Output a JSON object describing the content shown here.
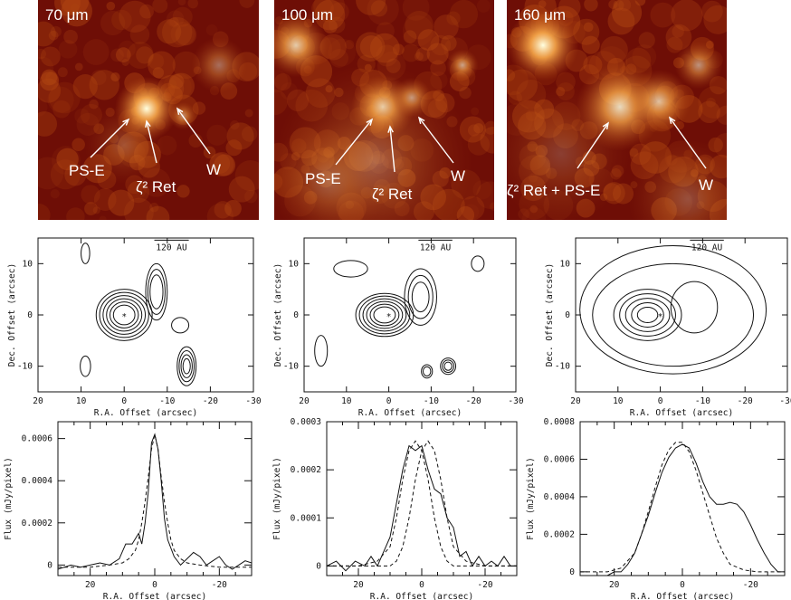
{
  "images": [
    {
      "wavelength": "70 μm",
      "labels": [
        {
          "key": "pse",
          "text": "PS-E"
        },
        {
          "key": "ret",
          "text": "ζ² Ret"
        },
        {
          "key": "w",
          "text": "W"
        }
      ]
    },
    {
      "wavelength": "100 μm",
      "labels": [
        {
          "key": "pse",
          "text": "PS-E"
        },
        {
          "key": "ret",
          "text": "ζ² Ret"
        },
        {
          "key": "w",
          "text": "W"
        }
      ]
    },
    {
      "wavelength": "160 μm",
      "labels": [
        {
          "key": "retpse",
          "text": "ζ² Ret + PS-E"
        },
        {
          "key": "w",
          "text": "W"
        }
      ]
    }
  ],
  "colors": {
    "image_dark": "#6e0e06",
    "image_mid": "#b34812",
    "image_bright": "#f7a84a",
    "image_peak": "#ffffe0",
    "line": "#111111"
  },
  "chart_data": [
    {
      "type": "contour",
      "panel": "70 μm",
      "xlabel": "R.A. Offset (arcsec)",
      "ylabel": "Dec. Offset (arcsec)",
      "xlim": [
        20,
        -30
      ],
      "ylim": [
        -15,
        15
      ],
      "xticks": [
        20,
        10,
        0,
        -10,
        -20,
        -30
      ],
      "yticks": [
        -10,
        0,
        10
      ],
      "scalebar": "120 AU",
      "star": [
        0,
        0
      ]
    },
    {
      "type": "contour",
      "panel": "100 μm",
      "xlabel": "R.A. Offset (arcsec)",
      "ylabel": "Dec. Offset (arcsec)",
      "xlim": [
        20,
        -30
      ],
      "ylim": [
        -15,
        15
      ],
      "xticks": [
        20,
        10,
        0,
        -10,
        -20,
        -30
      ],
      "yticks": [
        -10,
        0,
        10
      ],
      "scalebar": "120 AU",
      "star": [
        0,
        0
      ]
    },
    {
      "type": "contour",
      "panel": "160 μm",
      "xlabel": "R.A. Offset (arcsec)",
      "ylabel": "Dec. Offset (arcsec)",
      "xlim": [
        20,
        -30
      ],
      "ylim": [
        -15,
        15
      ],
      "xticks": [
        20,
        10,
        0,
        -10,
        -20,
        -30
      ],
      "yticks": [
        -10,
        0,
        10
      ],
      "scalebar": "120 AU",
      "star": [
        0,
        0
      ]
    },
    {
      "type": "line",
      "panel": "70 μm",
      "xlabel": "R.A. Offset (arcsec)",
      "ylabel": "Flux (mJy/pixel)",
      "xlim": [
        30,
        -30
      ],
      "ylim": [
        -5e-05,
        0.00068
      ],
      "xticks": [
        20,
        0,
        -20
      ],
      "yticks": [
        0,
        0.0002,
        0.0004,
        0.0006
      ],
      "ytick_labels": [
        "0",
        "0.0002",
        "0.0004",
        "0.0006"
      ],
      "series": [
        {
          "style": "solid",
          "x": [
            30,
            26,
            23,
            20,
            17,
            14,
            11,
            9,
            7,
            5,
            4,
            3,
            2,
            1,
            0,
            -1,
            -2,
            -3,
            -4,
            -6,
            -8,
            -10,
            -12,
            -14,
            -16,
            -18,
            -20,
            -22,
            -24,
            -26,
            -28,
            -30
          ],
          "y": [
            -2e-05,
            0.0,
            -1e-05,
            0.0,
            1e-05,
            0.0,
            3e-05,
            0.0001,
            0.0001,
            0.00015,
            0.0001,
            0.0002,
            0.00035,
            0.00058,
            0.00062,
            0.00055,
            0.0004,
            0.00022,
            0.00012,
            4e-05,
            0.0,
            3e-05,
            6e-05,
            4e-05,
            0.0,
            2e-05,
            4e-05,
            0.0,
            -2e-05,
            0.0,
            2e-05,
            1e-05
          ]
        },
        {
          "style": "dashed",
          "x": [
            30,
            20,
            14,
            10,
            8,
            6,
            5,
            4,
            3,
            2,
            1,
            0,
            -1,
            -2,
            -3,
            -4,
            -5,
            -6,
            -8,
            -10,
            -14,
            -20,
            -30
          ],
          "y": [
            -1e-05,
            -1e-05,
            0.0,
            1e-05,
            3e-05,
            7e-05,
            0.00012,
            0.0002,
            0.0003,
            0.00042,
            0.00055,
            0.00062,
            0.00055,
            0.00042,
            0.0003,
            0.0002,
            0.00012,
            7e-05,
            3e-05,
            1e-05,
            0.0,
            -1e-05,
            -1e-05
          ]
        }
      ]
    },
    {
      "type": "line",
      "panel": "100 μm",
      "xlabel": "R.A. Offset (arcsec)",
      "ylabel": "Flux (mJy/pixel)",
      "xlim": [
        30,
        -30
      ],
      "ylim": [
        -2e-05,
        0.0003
      ],
      "xticks": [
        20,
        0,
        -20
      ],
      "yticks": [
        0,
        0.0001,
        0.0002,
        0.0003
      ],
      "ytick_labels": [
        "0",
        "0.0001",
        "0.0002",
        "0.0003"
      ],
      "series": [
        {
          "style": "solid",
          "x": [
            30,
            27,
            24,
            21,
            18,
            16,
            14,
            12,
            10,
            8,
            6,
            4,
            2,
            0,
            -2,
            -4,
            -6,
            -8,
            -10,
            -12,
            -14,
            -16,
            -18,
            -20,
            -22,
            -24,
            -26,
            -28,
            -30
          ],
          "y": [
            0.0,
            1e-05,
            -1e-05,
            1e-05,
            0.0,
            2e-05,
            0.0,
            3e-05,
            6e-05,
            0.00013,
            0.0002,
            0.00025,
            0.00024,
            0.00025,
            0.0002,
            0.00016,
            0.00015,
            0.0001,
            8e-05,
            2e-05,
            3e-05,
            0.0,
            2e-05,
            0.0,
            1e-05,
            0.0,
            2e-05,
            0.0,
            0.0
          ]
        },
        {
          "style": "dashed",
          "x": [
            30,
            20,
            14,
            10,
            8,
            6,
            4,
            2,
            0,
            -2,
            -4,
            -6,
            -8,
            -10,
            -14,
            -20,
            -30
          ],
          "y": [
            0.0,
            0.0,
            1e-05,
            4e-05,
            0.0001,
            0.00018,
            0.00024,
            0.00026,
            0.00024,
            0.00018,
            0.0001,
            4e-05,
            1e-05,
            0.0,
            0.0,
            0.0,
            0.0
          ]
        },
        {
          "style": "dashed",
          "x": [
            30,
            20,
            14,
            10,
            8,
            6,
            4,
            2,
            0,
            -2,
            -4,
            -6,
            -8,
            -10,
            -14,
            -20,
            -30
          ],
          "y": [
            0.0,
            0.0,
            0.0,
            0.0,
            1e-05,
            4e-05,
            0.0001,
            0.00018,
            0.00024,
            0.00026,
            0.00024,
            0.00018,
            0.0001,
            4e-05,
            1e-05,
            0.0,
            0.0
          ]
        }
      ]
    },
    {
      "type": "line",
      "panel": "160 μm",
      "xlabel": "R.A. Offset (arcsec)",
      "ylabel": "Flux (mJy/pixel)",
      "xlim": [
        30,
        -30
      ],
      "ylim": [
        -2e-05,
        0.0008
      ],
      "xticks": [
        20,
        0,
        -20
      ],
      "yticks": [
        0,
        0.0002,
        0.0004,
        0.0006,
        0.0008
      ],
      "ytick_labels": [
        "0",
        "0.0002",
        "0.0004",
        "0.0006",
        "0.0008"
      ],
      "series": [
        {
          "style": "solid",
          "x": [
            22,
            20,
            18,
            16,
            14,
            12,
            10,
            8,
            6,
            4,
            2,
            0,
            -2,
            -4,
            -6,
            -8,
            -10,
            -12,
            -14,
            -16,
            -18,
            -20,
            -22,
            -24,
            -26,
            -28
          ],
          "y": [
            -2e-05,
            0.0,
            0.0,
            4e-05,
            0.0001,
            0.0002,
            0.0003,
            0.00042,
            0.00053,
            0.00061,
            0.00066,
            0.00068,
            0.00066,
            0.00058,
            0.00048,
            0.0004,
            0.00036,
            0.00036,
            0.00037,
            0.00036,
            0.00032,
            0.00025,
            0.00017,
            0.0001,
            4e-05,
            0.0
          ]
        },
        {
          "style": "dashed",
          "x": [
            30,
            22,
            18,
            14,
            12,
            10,
            8,
            6,
            4,
            2,
            0,
            -2,
            -4,
            -6,
            -8,
            -10,
            -12,
            -14,
            -18,
            -22,
            -30
          ],
          "y": [
            0.0,
            0.0,
            2e-05,
            0.0001,
            0.0002,
            0.00032,
            0.00045,
            0.00057,
            0.00065,
            0.00069,
            0.00069,
            0.00064,
            0.00054,
            0.00042,
            0.0003,
            0.00018,
            0.0001,
            4e-05,
            1e-05,
            0.0,
            0.0
          ]
        }
      ]
    }
  ]
}
